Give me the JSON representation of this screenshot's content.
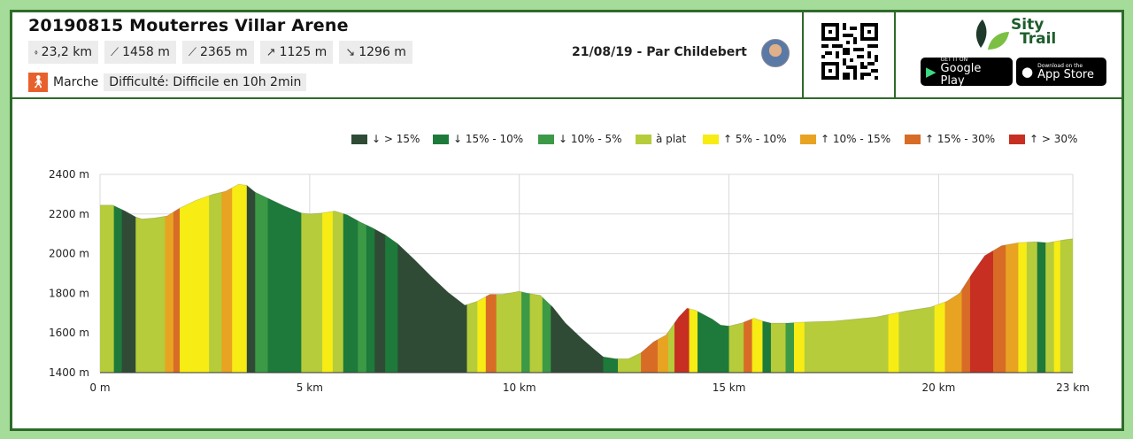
{
  "header": {
    "title": "20190815 Mouterres Villar Arene",
    "stats": [
      {
        "icon": "distance-icon",
        "glyph": "⬫",
        "label": "23,2 km"
      },
      {
        "icon": "min-elevation-icon",
        "glyph": "⟋",
        "label": "1458 m"
      },
      {
        "icon": "max-elevation-icon",
        "glyph": "⟋",
        "label": "2365 m"
      },
      {
        "icon": "ascent-icon",
        "glyph": "↗",
        "label": "1125 m"
      },
      {
        "icon": "descent-icon",
        "glyph": "↘",
        "label": "1296 m"
      }
    ],
    "activity": "Marche",
    "difficulty": "Difficulté: Difficile en 10h 2min",
    "author": "21/08/19 - Par Childebert"
  },
  "brand": {
    "line1": "Sity",
    "line2": "Trail",
    "color": "#1d5d2c"
  },
  "stores": {
    "google_small": "GET IT ON",
    "google_big": "Google Play",
    "apple_small": "Download on the",
    "apple_big": "App Store"
  },
  "chart_data": {
    "type": "area",
    "title": "",
    "xlabel": "",
    "ylabel": "",
    "xlim": [
      0,
      23.2
    ],
    "ylim": [
      1400,
      2400
    ],
    "x_ticks": [
      {
        "value": 0,
        "label": "0 m"
      },
      {
        "value": 5,
        "label": "5 km"
      },
      {
        "value": 10,
        "label": "10 km"
      },
      {
        "value": 15,
        "label": "15 km"
      },
      {
        "value": 20,
        "label": "20 km"
      },
      {
        "value": 23.2,
        "label": "23 km"
      }
    ],
    "y_ticks": [
      {
        "value": 1400,
        "label": "1400 m"
      },
      {
        "value": 1600,
        "label": "1600 m"
      },
      {
        "value": 1800,
        "label": "1800 m"
      },
      {
        "value": 2000,
        "label": "2000 m"
      },
      {
        "value": 2200,
        "label": "2200 m"
      },
      {
        "value": 2400,
        "label": "2400 m"
      }
    ],
    "legend": [
      {
        "label": "↓ > 15%",
        "color": "#2f4b35"
      },
      {
        "label": "↓ 15% - 10%",
        "color": "#1e7a3a"
      },
      {
        "label": "↓ 10% - 5%",
        "color": "#3c9a46"
      },
      {
        "label": "à plat",
        "color": "#b6cc3a"
      },
      {
        "label": "↑ 5% - 10%",
        "color": "#f7ec14"
      },
      {
        "label": "↑ 10% - 15%",
        "color": "#e8a322"
      },
      {
        "label": "↑ 15% - 30%",
        "color": "#d86c26"
      },
      {
        "label": "↑ > 30%",
        "color": "#c72f22"
      }
    ],
    "profile": {
      "x": [
        0,
        0.3,
        0.6,
        0.85,
        1.0,
        1.3,
        1.6,
        1.9,
        2.3,
        2.7,
        3.0,
        3.3,
        3.5,
        3.7,
        4.0,
        4.4,
        4.8,
        5.0,
        5.3,
        5.6,
        5.9,
        6.2,
        6.5,
        6.8,
        7.1,
        7.5,
        7.9,
        8.3,
        8.7,
        9.0,
        9.3,
        9.6,
        10.0,
        10.2,
        10.5,
        10.8,
        11.1,
        11.5,
        11.8,
        12.0,
        12.3,
        12.6,
        12.9,
        13.2,
        13.5,
        13.8,
        14.0,
        14.2,
        14.6,
        14.8,
        15.0,
        15.3,
        15.6,
        15.8,
        16.0,
        16.4,
        16.8,
        17.5,
        18.5,
        19.2,
        19.8,
        20.2,
        20.5,
        20.8,
        21.1,
        21.5,
        21.9,
        22.3,
        22.6,
        23.0,
        23.2
      ],
      "y": [
        2245,
        2245,
        2215,
        2185,
        2175,
        2180,
        2190,
        2230,
        2270,
        2300,
        2315,
        2350,
        2345,
        2310,
        2280,
        2240,
        2205,
        2200,
        2205,
        2215,
        2195,
        2160,
        2130,
        2095,
        2050,
        1970,
        1885,
        1805,
        1740,
        1760,
        1795,
        1795,
        1810,
        1800,
        1790,
        1730,
        1650,
        1570,
        1515,
        1480,
        1470,
        1470,
        1500,
        1555,
        1590,
        1680,
        1725,
        1715,
        1670,
        1640,
        1635,
        1650,
        1675,
        1660,
        1650,
        1650,
        1655,
        1660,
        1680,
        1710,
        1730,
        1760,
        1800,
        1900,
        1990,
        2040,
        2055,
        2060,
        2055,
        2070,
        2075
      ]
    },
    "segments": [
      {
        "x0": 0,
        "x1": 0.33,
        "cat": 3
      },
      {
        "x0": 0.33,
        "x1": 0.52,
        "cat": 1
      },
      {
        "x0": 0.52,
        "x1": 0.85,
        "cat": 0
      },
      {
        "x0": 0.85,
        "x1": 1.55,
        "cat": 3
      },
      {
        "x0": 1.55,
        "x1": 1.75,
        "cat": 5
      },
      {
        "x0": 1.75,
        "x1": 1.9,
        "cat": 6
      },
      {
        "x0": 1.9,
        "x1": 2.6,
        "cat": 4
      },
      {
        "x0": 2.6,
        "x1": 2.9,
        "cat": 3
      },
      {
        "x0": 2.9,
        "x1": 3.15,
        "cat": 5
      },
      {
        "x0": 3.15,
        "x1": 3.5,
        "cat": 4
      },
      {
        "x0": 3.5,
        "x1": 3.7,
        "cat": 0
      },
      {
        "x0": 3.7,
        "x1": 4.0,
        "cat": 2
      },
      {
        "x0": 4.0,
        "x1": 4.8,
        "cat": 1
      },
      {
        "x0": 4.8,
        "x1": 5.3,
        "cat": 3
      },
      {
        "x0": 5.3,
        "x1": 5.55,
        "cat": 4
      },
      {
        "x0": 5.55,
        "x1": 5.8,
        "cat": 3
      },
      {
        "x0": 5.8,
        "x1": 6.15,
        "cat": 1
      },
      {
        "x0": 6.15,
        "x1": 6.35,
        "cat": 2
      },
      {
        "x0": 6.35,
        "x1": 6.55,
        "cat": 1
      },
      {
        "x0": 6.55,
        "x1": 6.8,
        "cat": 0
      },
      {
        "x0": 6.8,
        "x1": 7.1,
        "cat": 1
      },
      {
        "x0": 7.1,
        "x1": 8.75,
        "cat": 0
      },
      {
        "x0": 8.75,
        "x1": 9.0,
        "cat": 3
      },
      {
        "x0": 9.0,
        "x1": 9.2,
        "cat": 4
      },
      {
        "x0": 9.2,
        "x1": 9.45,
        "cat": 6
      },
      {
        "x0": 9.45,
        "x1": 10.05,
        "cat": 3
      },
      {
        "x0": 10.05,
        "x1": 10.25,
        "cat": 2
      },
      {
        "x0": 10.25,
        "x1": 10.55,
        "cat": 3
      },
      {
        "x0": 10.55,
        "x1": 10.75,
        "cat": 2
      },
      {
        "x0": 10.75,
        "x1": 12.0,
        "cat": 0
      },
      {
        "x0": 12.0,
        "x1": 12.35,
        "cat": 1
      },
      {
        "x0": 12.35,
        "x1": 12.9,
        "cat": 3
      },
      {
        "x0": 12.9,
        "x1": 13.3,
        "cat": 6
      },
      {
        "x0": 13.3,
        "x1": 13.55,
        "cat": 5
      },
      {
        "x0": 13.55,
        "x1": 13.7,
        "cat": 3
      },
      {
        "x0": 13.7,
        "x1": 14.05,
        "cat": 7
      },
      {
        "x0": 14.05,
        "x1": 14.25,
        "cat": 4
      },
      {
        "x0": 14.25,
        "x1": 15.0,
        "cat": 1
      },
      {
        "x0": 15.0,
        "x1": 15.35,
        "cat": 3
      },
      {
        "x0": 15.35,
        "x1": 15.55,
        "cat": 6
      },
      {
        "x0": 15.55,
        "x1": 15.8,
        "cat": 4
      },
      {
        "x0": 15.8,
        "x1": 16.0,
        "cat": 1
      },
      {
        "x0": 16.0,
        "x1": 16.35,
        "cat": 3
      },
      {
        "x0": 16.35,
        "x1": 16.55,
        "cat": 2
      },
      {
        "x0": 16.55,
        "x1": 16.8,
        "cat": 4
      },
      {
        "x0": 16.8,
        "x1": 18.8,
        "cat": 3
      },
      {
        "x0": 18.8,
        "x1": 19.05,
        "cat": 4
      },
      {
        "x0": 19.05,
        "x1": 19.9,
        "cat": 3
      },
      {
        "x0": 19.9,
        "x1": 20.15,
        "cat": 4
      },
      {
        "x0": 20.15,
        "x1": 20.55,
        "cat": 5
      },
      {
        "x0": 20.55,
        "x1": 20.75,
        "cat": 6
      },
      {
        "x0": 20.75,
        "x1": 21.3,
        "cat": 7
      },
      {
        "x0": 21.3,
        "x1": 21.6,
        "cat": 6
      },
      {
        "x0": 21.6,
        "x1": 21.9,
        "cat": 5
      },
      {
        "x0": 21.9,
        "x1": 22.1,
        "cat": 4
      },
      {
        "x0": 22.1,
        "x1": 22.35,
        "cat": 3
      },
      {
        "x0": 22.35,
        "x1": 22.55,
        "cat": 1
      },
      {
        "x0": 22.55,
        "x1": 22.75,
        "cat": 3
      },
      {
        "x0": 22.75,
        "x1": 22.9,
        "cat": 4
      },
      {
        "x0": 22.9,
        "x1": 23.2,
        "cat": 3
      }
    ]
  }
}
